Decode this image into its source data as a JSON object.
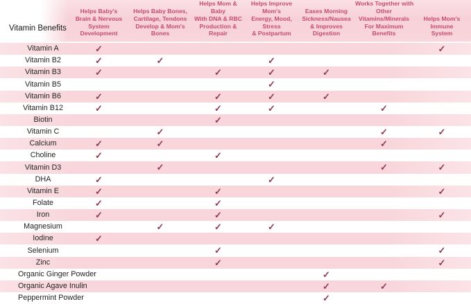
{
  "chart_data": {
    "type": "table",
    "title": "Vitamin Benefits",
    "check_glyph": "✓",
    "columns": [
      "Helps Baby's\nBrain & Nervous\nSystem\nDevelopment",
      "Helps Baby Bones,\nCartilage, Tendons\nDevelop & Mom's\nBones",
      "Helps Mom &\nBaby\nWith DNA & RBC\nProduction &\nRepair",
      "Helps Improve\nMom's\nEnergy, Mood,\nStress\n& Postpartum",
      "Eases Morning\nSickness/Nausea\n& Improves\nDigestion",
      "Works Together with\nOther\nVitamins/Minerals\nFor Maximum\nBenefits",
      "Helps Mom's\nImmune\nSystem"
    ],
    "rows": [
      {
        "label": "Vitamin A",
        "checks": [
          1,
          0,
          0,
          0,
          0,
          0,
          1
        ]
      },
      {
        "label": "Vitamin B2",
        "checks": [
          1,
          1,
          0,
          1,
          0,
          0,
          0
        ]
      },
      {
        "label": "Vitamin B3",
        "checks": [
          1,
          0,
          1,
          1,
          1,
          0,
          0
        ]
      },
      {
        "label": "Vitamin B5",
        "checks": [
          0,
          0,
          0,
          1,
          0,
          0,
          0
        ]
      },
      {
        "label": "Vitamin B6",
        "checks": [
          1,
          0,
          1,
          1,
          1,
          0,
          0
        ]
      },
      {
        "label": "Vitamin B12",
        "checks": [
          1,
          0,
          1,
          1,
          0,
          1,
          0
        ]
      },
      {
        "label": "Biotin",
        "checks": [
          0,
          0,
          1,
          0,
          0,
          0,
          0
        ]
      },
      {
        "label": "Vitamin C",
        "checks": [
          0,
          1,
          0,
          0,
          0,
          1,
          1
        ]
      },
      {
        "label": "Calcium",
        "checks": [
          1,
          1,
          0,
          0,
          0,
          1,
          0
        ]
      },
      {
        "label": "Choline",
        "checks": [
          1,
          0,
          1,
          0,
          0,
          0,
          0
        ]
      },
      {
        "label": "Vitamin D3",
        "checks": [
          0,
          1,
          0,
          0,
          0,
          1,
          1
        ]
      },
      {
        "label": "DHA",
        "checks": [
          1,
          0,
          0,
          1,
          0,
          0,
          0
        ]
      },
      {
        "label": "Vitamin E",
        "checks": [
          1,
          0,
          1,
          0,
          0,
          0,
          1
        ]
      },
      {
        "label": "Folate",
        "checks": [
          1,
          0,
          1,
          0,
          0,
          0,
          0
        ]
      },
      {
        "label": "Iron",
        "checks": [
          1,
          0,
          1,
          0,
          0,
          0,
          1
        ]
      },
      {
        "label": "Magnesium",
        "checks": [
          0,
          1,
          1,
          1,
          0,
          0,
          0
        ]
      },
      {
        "label": "Iodine",
        "checks": [
          1,
          0,
          0,
          0,
          0,
          0,
          0
        ]
      },
      {
        "label": "Selenium",
        "checks": [
          0,
          0,
          1,
          0,
          0,
          0,
          1
        ]
      },
      {
        "label": "Zinc",
        "checks": [
          0,
          0,
          1,
          0,
          0,
          0,
          1
        ]
      },
      {
        "label": "Organic Ginger Powder",
        "checks": [
          0,
          0,
          0,
          0,
          1,
          0,
          0
        ]
      },
      {
        "label": "Organic Agave Inulin",
        "checks": [
          0,
          0,
          0,
          0,
          1,
          1,
          0
        ]
      },
      {
        "label": "Peppermint Powder",
        "checks": [
          0,
          0,
          0,
          0,
          1,
          0,
          0
        ]
      }
    ],
    "colors": {
      "header_text": "#c64b70",
      "check": "#8d3a54",
      "stripe_pink": "#f8d6db",
      "label_text": "#222222"
    },
    "layout": {
      "grid": "striped-rows",
      "legend_position": "none"
    }
  }
}
